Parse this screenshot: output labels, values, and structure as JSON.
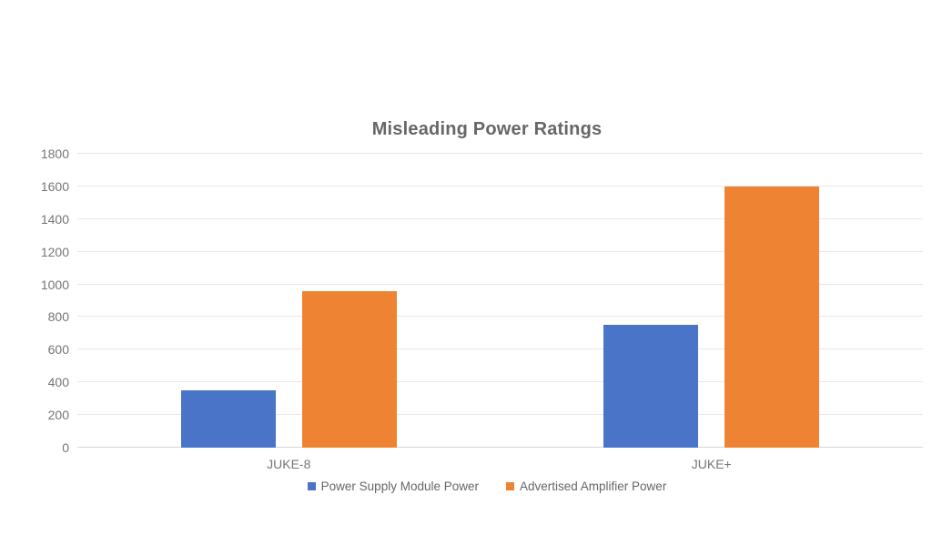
{
  "page_title": "Misleading Power Ratings",
  "chart_data": {
    "type": "bar",
    "title": "Misleading Power Ratings",
    "categories": [
      "JUKE-8",
      "JUKE+"
    ],
    "series": [
      {
        "name": "Power Supply Module Power",
        "color": "#4a74c8",
        "values": [
          350,
          750
        ]
      },
      {
        "name": "Advertised Amplifier Power",
        "color": "#ee8433",
        "values": [
          960,
          1600
        ]
      }
    ],
    "ylim": [
      0,
      1800
    ],
    "yticks": [
      0,
      200,
      400,
      600,
      800,
      1000,
      1200,
      1400,
      1600,
      1800
    ],
    "xlabel": "",
    "ylabel": "",
    "grid": "horizontal",
    "legend_position": "bottom"
  },
  "colors": {
    "background": "#ffffff",
    "title_text": "#666666",
    "axis_text": "#757575",
    "legend_text": "#666666",
    "gridline": "#e7e7e7",
    "baseline": "#d6d6d6"
  }
}
